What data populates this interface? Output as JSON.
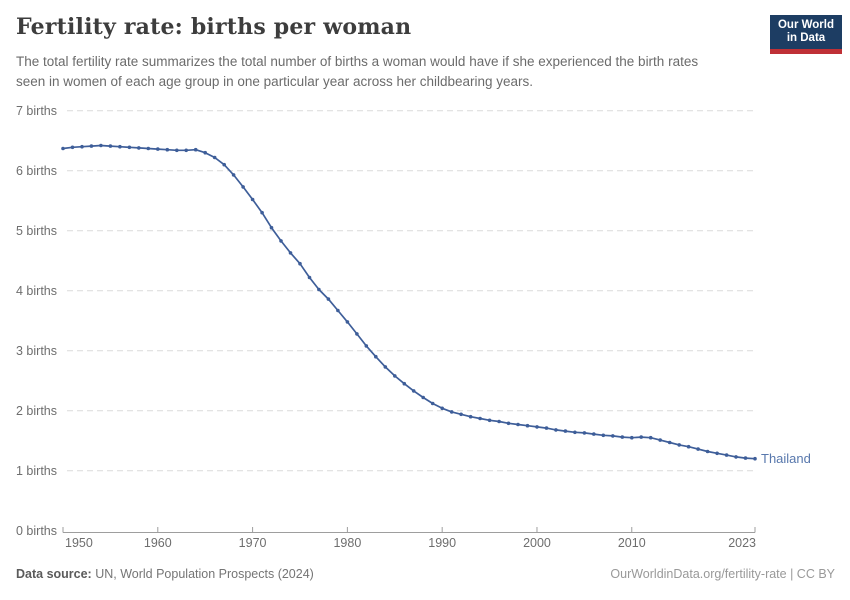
{
  "header": {
    "title": "Fertility rate: births per woman",
    "subtitle": "The total fertility rate summarizes the total number of births a woman would have if she experienced the birth rates seen in women of each age group in one particular year across her childbearing years."
  },
  "logo": {
    "line1": "Our World",
    "line2": "in Data",
    "bg_color": "#1d3d63",
    "bar_color": "#bf3036"
  },
  "footer": {
    "source_label": "Data source:",
    "source_value": " UN, World Population Prospects (2024)",
    "credit": "OurWorldinData.org/fertility-rate | CC BY"
  },
  "chart_data": {
    "type": "line",
    "title": "Fertility rate: births per woman",
    "xlabel": "",
    "ylabel": "births",
    "xlim": [
      1950,
      2023
    ],
    "ylim": [
      0,
      7
    ],
    "x_ticks": [
      1950,
      1960,
      1970,
      1980,
      1990,
      2000,
      2010,
      2023
    ],
    "y_ticks": [
      0,
      1,
      2,
      3,
      4,
      5,
      6,
      7
    ],
    "y_tick_suffix": " births",
    "grid": "horizontal-dashed",
    "legend_position": "end-of-line-label",
    "colors": {
      "line": "#3e5e99",
      "grid": "#dadada",
      "axis": "#9e9e9e",
      "tick_label": "#6e6e6e",
      "series_label": "#5878ad"
    },
    "series": [
      {
        "name": "Thailand",
        "x": [
          1950,
          1951,
          1952,
          1953,
          1954,
          1955,
          1956,
          1957,
          1958,
          1959,
          1960,
          1961,
          1962,
          1963,
          1964,
          1965,
          1966,
          1967,
          1968,
          1969,
          1970,
          1971,
          1972,
          1973,
          1974,
          1975,
          1976,
          1977,
          1978,
          1979,
          1980,
          1981,
          1982,
          1983,
          1984,
          1985,
          1986,
          1987,
          1988,
          1989,
          1990,
          1991,
          1992,
          1993,
          1994,
          1995,
          1996,
          1997,
          1998,
          1999,
          2000,
          2001,
          2002,
          2003,
          2004,
          2005,
          2006,
          2007,
          2008,
          2009,
          2010,
          2011,
          2012,
          2013,
          2014,
          2015,
          2016,
          2017,
          2018,
          2019,
          2020,
          2021,
          2022,
          2023
        ],
        "values": [
          6.37,
          6.39,
          6.4,
          6.41,
          6.42,
          6.41,
          6.4,
          6.39,
          6.38,
          6.37,
          6.36,
          6.35,
          6.34,
          6.34,
          6.35,
          6.3,
          6.22,
          6.1,
          5.93,
          5.73,
          5.52,
          5.3,
          5.05,
          4.83,
          4.63,
          4.45,
          4.22,
          4.02,
          3.86,
          3.67,
          3.48,
          3.28,
          3.08,
          2.9,
          2.73,
          2.58,
          2.45,
          2.33,
          2.22,
          2.12,
          2.04,
          1.98,
          1.94,
          1.9,
          1.87,
          1.84,
          1.82,
          1.79,
          1.77,
          1.75,
          1.73,
          1.71,
          1.68,
          1.66,
          1.64,
          1.63,
          1.61,
          1.59,
          1.58,
          1.56,
          1.55,
          1.56,
          1.55,
          1.51,
          1.47,
          1.43,
          1.4,
          1.36,
          1.32,
          1.29,
          1.26,
          1.23,
          1.21,
          1.2
        ]
      }
    ]
  }
}
